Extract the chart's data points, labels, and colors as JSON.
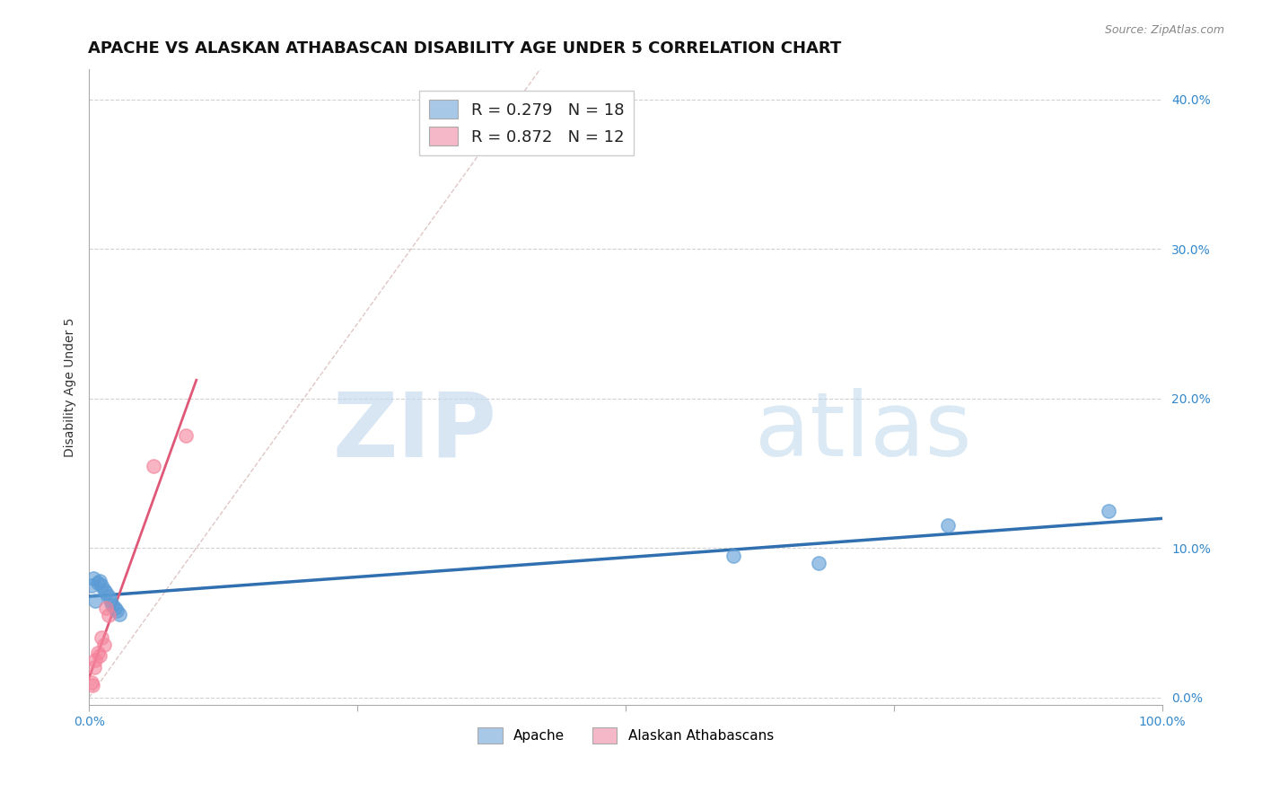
{
  "title": "APACHE VS ALASKAN ATHABASCAN DISABILITY AGE UNDER 5 CORRELATION CHART",
  "source": "Source: ZipAtlas.com",
  "ylabel": "Disability Age Under 5",
  "xlim": [
    0.0,
    1.0
  ],
  "ylim": [
    -0.005,
    0.42
  ],
  "yticks": [
    0.0,
    0.1,
    0.2,
    0.3,
    0.4
  ],
  "ytick_labels": [
    "0.0%",
    "10.0%",
    "20.0%",
    "30.0%",
    "40.0%"
  ],
  "xticks": [
    0.0,
    0.25,
    0.5,
    0.75,
    1.0
  ],
  "xtick_labels": [
    "0.0%",
    "",
    "",
    "",
    "100.0%"
  ],
  "apache_R": 0.279,
  "apache_N": 18,
  "alaskan_R": 0.872,
  "alaskan_N": 12,
  "apache_color": "#A8C8E8",
  "alaskan_color": "#F4B8C8",
  "apache_scatter_color": "#5B9BD5",
  "alaskan_scatter_color": "#F4829A",
  "apache_line_color": "#3070B0",
  "alaskan_line_color": "#E05878",
  "background_color": "#FFFFFF",
  "grid_color": "#CCCCCC",
  "apache_x": [
    0.002,
    0.004,
    0.006,
    0.008,
    0.01,
    0.012,
    0.014,
    0.016,
    0.018,
    0.02,
    0.022,
    0.024,
    0.026,
    0.028,
    0.6,
    0.68,
    0.8,
    0.95
  ],
  "apache_y": [
    0.075,
    0.08,
    0.065,
    0.077,
    0.078,
    0.075,
    0.072,
    0.07,
    0.068,
    0.065,
    0.062,
    0.06,
    0.058,
    0.056,
    0.095,
    0.09,
    0.115,
    0.125
  ],
  "alaskan_x": [
    0.002,
    0.003,
    0.005,
    0.006,
    0.008,
    0.01,
    0.012,
    0.014,
    0.016,
    0.018,
    0.06,
    0.09
  ],
  "alaskan_y": [
    0.01,
    0.008,
    0.02,
    0.025,
    0.03,
    0.028,
    0.04,
    0.035,
    0.06,
    0.055,
    0.155,
    0.175
  ],
  "watermark_zip": "ZIP",
  "watermark_atlas": "atlas",
  "title_fontsize": 13,
  "label_fontsize": 10,
  "tick_fontsize": 10,
  "legend_fontsize": 13
}
